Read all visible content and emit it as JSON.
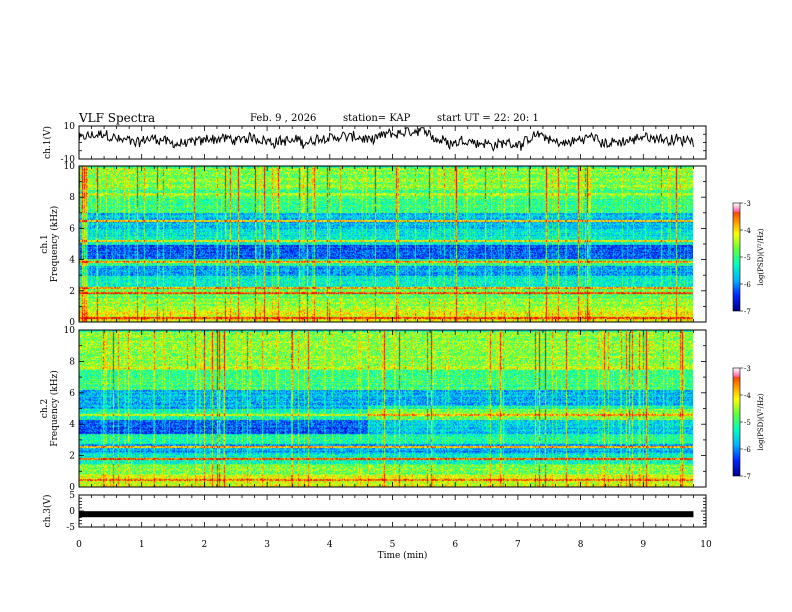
{
  "header": {
    "title": "VLF Spectra",
    "date": "Feb. 9 , 2026",
    "station": "station= KAP",
    "start": "start UT = 22: 20: 1"
  },
  "colors": {
    "background": "#ffffff",
    "axis": "#000000",
    "trace": "#000000",
    "colormap": [
      "#000090",
      "#0028ff",
      "#00b4ff",
      "#00ffc0",
      "#60ff40",
      "#ffff00",
      "#ff8000",
      "#e00000",
      "#ff60a0",
      "#ffffff"
    ]
  },
  "chart_data": [
    {
      "type": "line",
      "panel": "ch1-waveform",
      "ylabel": "ch.1(V)",
      "ylim": [
        -10,
        10
      ],
      "yticks": [
        "10",
        "-10"
      ],
      "xlim": [
        0,
        10
      ],
      "description_series": "noisy waveform oscillating roughly between -5 and 8 V"
    },
    {
      "type": "heatmap",
      "panel": "ch1-spectrogram",
      "ylabel_top": "ch.1",
      "ylabel": "Frequency (kHz)",
      "ylim": [
        0,
        10
      ],
      "yticks": [
        "0",
        "2",
        "4",
        "6",
        "8",
        "10"
      ],
      "xlim": [
        0,
        10
      ],
      "colorbar": {
        "label": "log(PSD)(V²/Hz)",
        "range": [
          -7,
          -3
        ],
        "ticks": [
          "-3",
          "-4",
          "-5",
          "-6",
          "-7"
        ]
      },
      "bands": [
        {
          "f": [
            0,
            0.8
          ],
          "level": -4.2
        },
        {
          "f": [
            0.8,
            1.5
          ],
          "level": -4.6
        },
        {
          "f": [
            1.5,
            2.3
          ],
          "level": -4.8
        },
        {
          "f": [
            2.3,
            3.0
          ],
          "level": -5.4
        },
        {
          "f": [
            3.0,
            3.6
          ],
          "level": -5.9
        },
        {
          "f": [
            3.6,
            4.1
          ],
          "level": -5.2
        },
        {
          "f": [
            4.1,
            5.0
          ],
          "level": -6.3
        },
        {
          "f": [
            5.0,
            6.0
          ],
          "level": -5.5
        },
        {
          "f": [
            6.0,
            7.0
          ],
          "level": -5.8
        },
        {
          "f": [
            7.0,
            8.5
          ],
          "level": -5.0
        },
        {
          "f": [
            8.5,
            9.9
          ],
          "level": -4.7
        }
      ],
      "lines": [
        {
          "f": 0.3,
          "level": -3.4
        },
        {
          "f": 1.9,
          "level": -3.4
        },
        {
          "f": 2.2,
          "level": -3.6
        },
        {
          "f": 3.9,
          "level": -3.8
        },
        {
          "f": 5.2,
          "level": -4.2
        },
        {
          "f": 6.5,
          "level": -4.0
        },
        {
          "f": 8.2,
          "level": -4.5
        }
      ]
    },
    {
      "type": "heatmap",
      "panel": "ch2-spectrogram",
      "ylabel_top": "ch.2",
      "ylabel": "Frequency (kHz)",
      "ylim": [
        0,
        10
      ],
      "yticks": [
        "0",
        "2",
        "4",
        "6",
        "8",
        "10"
      ],
      "xlim": [
        0,
        10
      ],
      "colorbar": {
        "label": "log(PSD)(V²/Hz)",
        "range": [
          -7,
          -3
        ],
        "ticks": [
          "-3",
          "-4",
          "-5",
          "-6",
          "-7"
        ]
      },
      "bands": [
        {
          "f": [
            0,
            0.8
          ],
          "level": -4.3
        },
        {
          "f": [
            0.8,
            1.5
          ],
          "level": -4.7
        },
        {
          "f": [
            1.5,
            2.2
          ],
          "level": -5.4
        },
        {
          "f": [
            2.2,
            2.8
          ],
          "level": -5.9
        },
        {
          "f": [
            2.8,
            3.4
          ],
          "level": -5.2
        },
        {
          "f": [
            3.4,
            4.3
          ],
          "level": -6.3
        },
        {
          "f": [
            4.3,
            5.0
          ],
          "level": -5.3
        },
        {
          "f": [
            5.0,
            6.2
          ],
          "level": -5.8
        },
        {
          "f": [
            6.2,
            7.5
          ],
          "level": -5.0
        },
        {
          "f": [
            7.5,
            9.9
          ],
          "level": -4.6
        }
      ],
      "lines": [
        {
          "f": 0.5,
          "level": -3.4
        },
        {
          "f": 1.8,
          "level": -3.5
        },
        {
          "f": 2.6,
          "level": -3.9
        },
        {
          "f": 4.6,
          "level": -4.3
        },
        {
          "f": 7.6,
          "level": -4.2
        }
      ]
    },
    {
      "type": "line",
      "panel": "ch3-waveform",
      "ylabel": "ch.3(V)",
      "ylim": [
        -5,
        5
      ],
      "yticks": [
        "5",
        "0",
        "-5"
      ],
      "xlim": [
        0,
        10
      ],
      "xlabel": "Time (min)",
      "xticks": [
        "0",
        "1",
        "2",
        "3",
        "4",
        "5",
        "6",
        "7",
        "8",
        "9",
        "10"
      ],
      "description_series": "flat thick trace at about -1 V, ending near 9.8 min"
    }
  ]
}
